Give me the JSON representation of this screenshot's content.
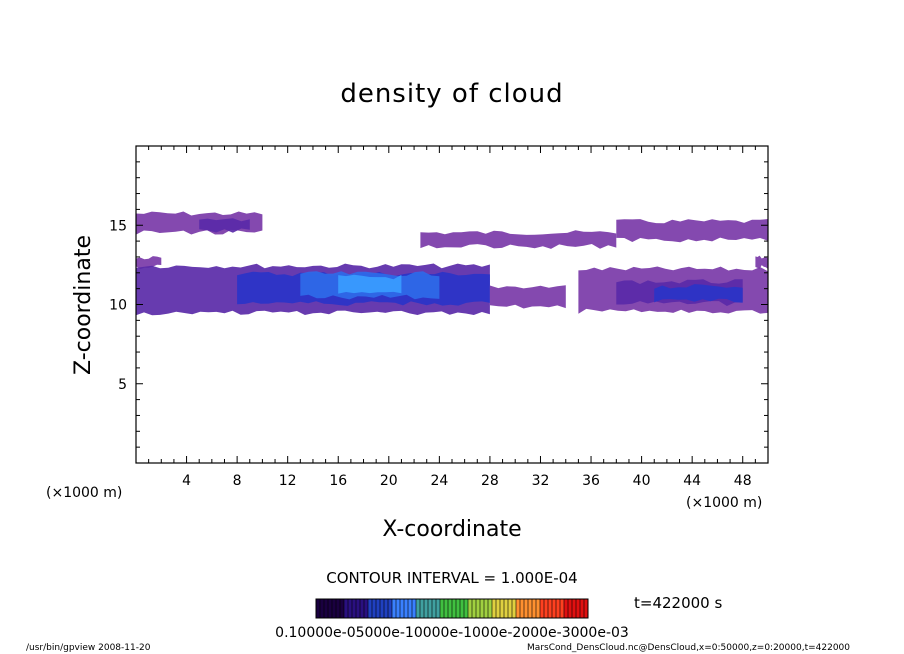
{
  "chart_data": {
    "type": "heatmap",
    "title": "density of cloud",
    "xlabel": "X-coordinate",
    "ylabel": "Z-coordinate",
    "x_unit": "(×1000 m)",
    "y_unit": "(×1000 m)",
    "xlim": [
      0,
      50
    ],
    "ylim": [
      0,
      20
    ],
    "x_ticks": [
      4,
      8,
      12,
      16,
      20,
      24,
      28,
      32,
      36,
      40,
      44,
      48
    ],
    "y_ticks": [
      5,
      10,
      15
    ],
    "grid": false,
    "contour_interval_label": "CONTOUR INTERVAL = 1.000E-04",
    "time_label": "t=422000 s",
    "colorbar": {
      "tick_text": "0.10000e-05000e-10000e-1000e-2000e-3000e-03",
      "colors": [
        "#1a0040",
        "#2a1080",
        "#2040c0",
        "#3a80ff",
        "#40a0a0",
        "#40c040",
        "#a0d040",
        "#e0d040",
        "#ff9030",
        "#ff4020",
        "#e01010"
      ]
    },
    "cloud_regions": [
      {
        "x": [
          0,
          10
        ],
        "z": [
          14.5,
          15.8
        ],
        "level": 0.0001
      },
      {
        "x": [
          5,
          9
        ],
        "z": [
          14.6,
          15.4
        ],
        "level": 0.00015
      },
      {
        "x": [
          0,
          2
        ],
        "z": [
          12.3,
          13.0
        ],
        "level": 0.0001
      },
      {
        "x": [
          22.5,
          38
        ],
        "z": [
          13.6,
          14.6
        ],
        "level": 0.0001
      },
      {
        "x": [
          38,
          50
        ],
        "z": [
          14.0,
          15.3
        ],
        "level": 0.0001
      },
      {
        "x": [
          49,
          50
        ],
        "z": [
          12.3,
          13.0
        ],
        "level": 0.0001
      },
      {
        "x": [
          0,
          28
        ],
        "z": [
          9.4,
          12.5
        ],
        "level": 0.00015
      },
      {
        "x": [
          8,
          28
        ],
        "z": [
          10.0,
          12.0
        ],
        "level": 0.0002
      },
      {
        "x": [
          13,
          24
        ],
        "z": [
          10.4,
          12.0
        ],
        "level": 0.0003
      },
      {
        "x": [
          16,
          21
        ],
        "z": [
          10.6,
          11.8
        ],
        "level": 0.00035
      },
      {
        "x": [
          28,
          34
        ],
        "z": [
          9.8,
          11.2
        ],
        "level": 0.0001
      },
      {
        "x": [
          35,
          50
        ],
        "z": [
          9.5,
          12.3
        ],
        "level": 0.0001
      },
      {
        "x": [
          38,
          48
        ],
        "z": [
          10.0,
          11.5
        ],
        "level": 0.00015
      },
      {
        "x": [
          41,
          48
        ],
        "z": [
          10.2,
          11.2
        ],
        "level": 0.0002
      }
    ]
  },
  "footer": {
    "left": "/usr/bin/gpview   2008-11-20",
    "right": "MarsCond_DensCloud.nc@DensCloud,x=0:50000,z=0:20000,t=422000"
  }
}
